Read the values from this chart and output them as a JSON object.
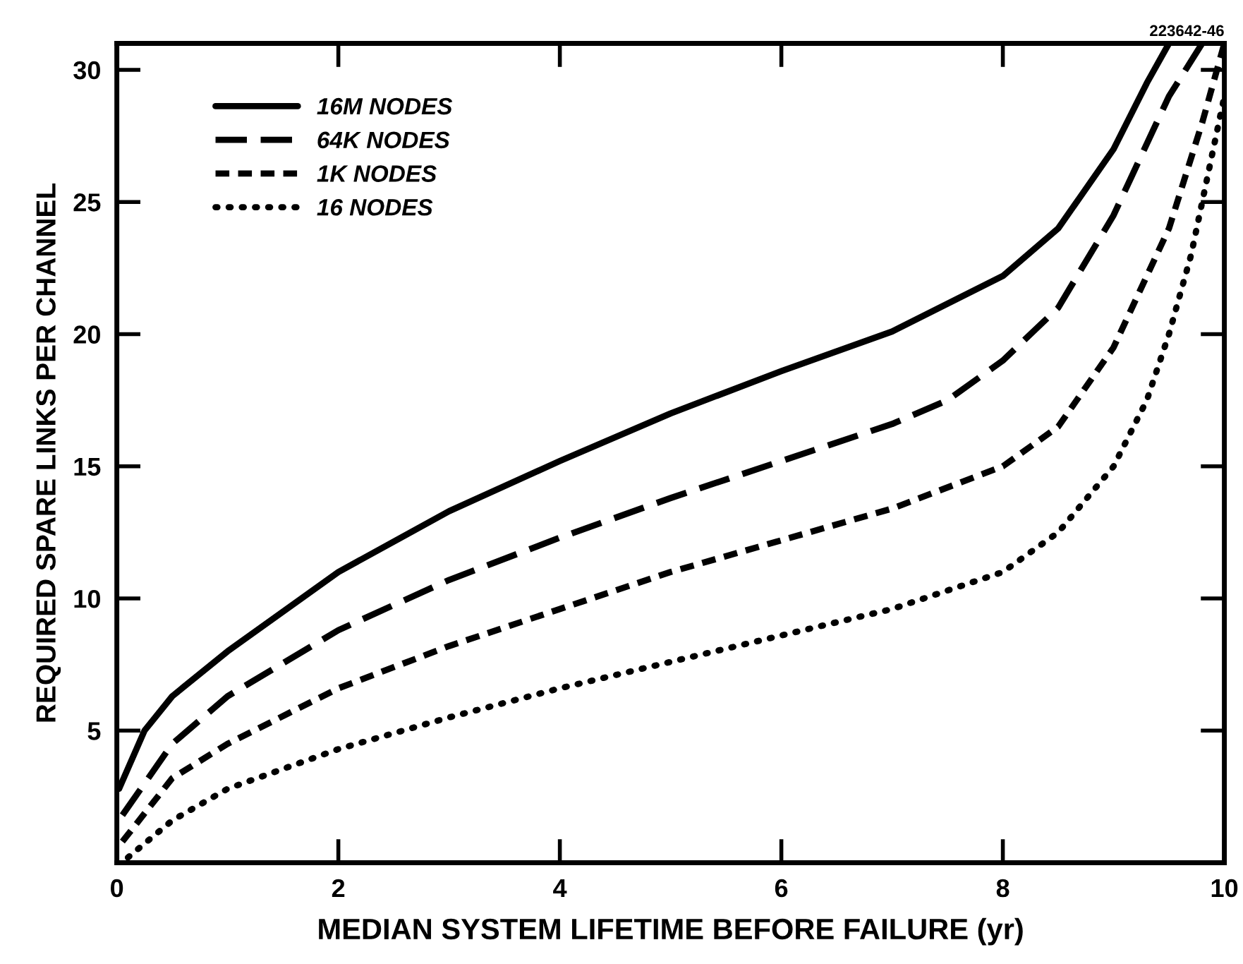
{
  "chart_data": {
    "type": "line",
    "xlabel": "MEDIAN SYSTEM LIFETIME BEFORE FAILURE (yr)",
    "ylabel": "REQUIRED SPARE LINKS PER CHANNEL",
    "annotations": [
      "223642-46"
    ],
    "xlim": [
      0,
      10
    ],
    "ylim": [
      0,
      31
    ],
    "xticks": [
      0,
      2,
      4,
      6,
      8,
      10
    ],
    "yticks": [
      5,
      10,
      15,
      20,
      25,
      30
    ],
    "grid": false,
    "legend": "top left",
    "marker": "none",
    "series": [
      {
        "name": "16M NODES",
        "color": "#000000",
        "line_style": "solid",
        "x": [
          0.02,
          0.25,
          0.5,
          1,
          2,
          3,
          4,
          5,
          6,
          7,
          8,
          8.5,
          9,
          9.3,
          9.5
        ],
        "values": [
          2.8,
          5.0,
          6.3,
          8.0,
          11.0,
          13.3,
          15.2,
          17.0,
          18.6,
          20.1,
          22.2,
          24.0,
          27.0,
          29.5,
          31.0
        ]
      },
      {
        "name": "64K NODES",
        "color": "#000000",
        "line_style": "dashed",
        "x": [
          0.05,
          0.5,
          1,
          2,
          3,
          4,
          5,
          6,
          7,
          7.5,
          8,
          8.5,
          9,
          9.5,
          9.8
        ],
        "values": [
          1.8,
          4.5,
          6.3,
          8.8,
          10.7,
          12.3,
          13.8,
          15.2,
          16.6,
          17.5,
          19.0,
          21.0,
          24.5,
          29.0,
          31.0
        ]
      },
      {
        "name": "1K NODES",
        "color": "#000000",
        "line_style": "dashed_short",
        "x": [
          0.05,
          0.5,
          1,
          2,
          3,
          4,
          5,
          6,
          7,
          8,
          8.5,
          9,
          9.5,
          9.8,
          10
        ],
        "values": [
          0.8,
          3.2,
          4.5,
          6.6,
          8.2,
          9.6,
          11.0,
          12.2,
          13.4,
          15.0,
          16.5,
          19.5,
          24.0,
          28.0,
          31.0
        ]
      },
      {
        "name": "16 NODES",
        "color": "#000000",
        "line_style": "dotted",
        "x": [
          0.1,
          0.5,
          1,
          2,
          3,
          4,
          5,
          6,
          7,
          8,
          8.5,
          9,
          9.3,
          9.5,
          9.7,
          9.9,
          10
        ],
        "values": [
          0.2,
          1.6,
          2.8,
          4.3,
          5.5,
          6.6,
          7.6,
          8.6,
          9.6,
          11.0,
          12.5,
          15.0,
          17.5,
          20.0,
          23.0,
          27.0,
          29.0
        ]
      }
    ]
  }
}
